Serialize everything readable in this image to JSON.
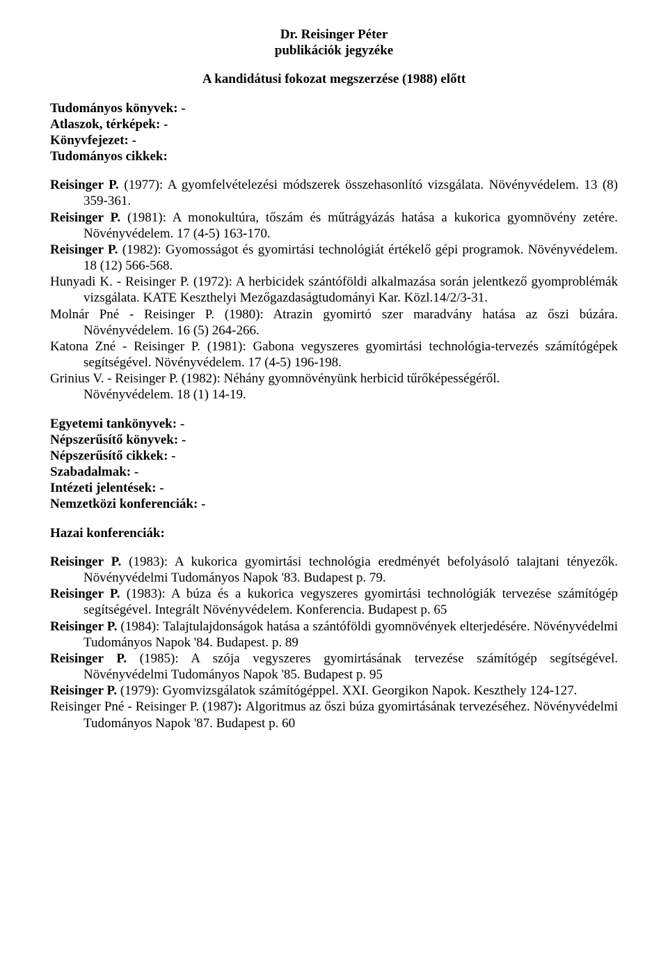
{
  "header": {
    "name": "Dr. Reisinger Péter",
    "subtitle": "publikációk jegyzéke",
    "section_label": "A kandidátusi fokozat megszerzése (1988) előtt"
  },
  "sections_top": [
    "Tudományos könyvek: -",
    "Atlaszok, térképek: -",
    "Könyvfejezet: -",
    "Tudományos cikkek:"
  ],
  "entries_main": [
    {
      "runs": [
        {
          "t": "Reisinger P.",
          "b": true
        },
        {
          "t": " (1977): A gyomfelvételezési módszerek összehasonlító vizsgálata. Növényvédelem. 13 (8) 359-361.",
          "b": false
        }
      ]
    },
    {
      "runs": [
        {
          "t": "Reisinger P.",
          "b": true
        },
        {
          "t": " (1981): A monokultúra, tőszám és műtrágyázás hatása a kukorica gyomnövény zetére. Növényvédelem. 17 (4-5) 163-170.",
          "b": false
        }
      ]
    },
    {
      "runs": [
        {
          "t": "Reisinger P.",
          "b": true
        },
        {
          "t": " (1982): Gyomosságot és gyomirtási technológiát értékelő gépi programok. Növényvédelem. 18 (12) 566-568.",
          "b": false
        }
      ]
    },
    {
      "runs": [
        {
          "t": "Hunyadi K. - Reisinger P.",
          "b": false
        },
        {
          "t": " (1972): A herbicidek szántóföldi alkalmazása során jelentkező gyomproblémák vizsgálata. KATE Keszthelyi Mezőgazdaságtudományi Kar. Közl.14/2/3-31.",
          "b": false
        }
      ]
    },
    {
      "runs": [
        {
          "t": "Molnár Pné - Reisinger  P.",
          "b": false
        },
        {
          "t": " (1980): Atrazin gyomirtó szer maradvány hatása az őszi búzára. Növényvédelem. 16 (5) 264-266.",
          "b": false
        }
      ]
    },
    {
      "runs": [
        {
          "t": "Katona Zné - Reisinger P.",
          "b": false
        },
        {
          "t": " (1981): Gabona vegyszeres gyomirtási technológia-tervezés számítógépek segítségével. Növényvédelem. 17 (4-5) 196-198.",
          "b": false
        }
      ]
    },
    {
      "runs": [
        {
          "t": "Grinius V.  - Reisinger P.",
          "b": false
        },
        {
          "t": " (1982):  Néhány gyomnövényünk herbicid tűrőképességéről.",
          "b": false
        }
      ]
    },
    {
      "runs": [
        {
          "t": "Növényvédelem. 18 (1) 14-19.",
          "b": false
        }
      ],
      "nohang": false,
      "indentOnly": true
    }
  ],
  "sections_mid": [
    "Egyetemi tankönyvek: -",
    "Népszerűsítő könyvek: -",
    "Népszerűsítő cikkek: -",
    "Szabadalmak: -",
    "Intézeti jelentések: -",
    "Nemzetközi konferenciák: -"
  ],
  "hazai_label": "Hazai konferenciák:",
  "entries_hazai": [
    {
      "runs": [
        {
          "t": "Reisinger  P.",
          "b": true
        },
        {
          "t": " (1983):  A kukorica gyomirtási technológia eredményét befolyásoló talajtani tényezők. Növényvédelmi Tudományos Napok '83. Budapest p. 79.",
          "b": false
        }
      ]
    },
    {
      "runs": [
        {
          "t": "Reisinger P.",
          "b": true
        },
        {
          "t": " (1983): A búza és a kukorica vegyszeres gyomirtási technológiák tervezése számítógép segítségével. Integrált Növényvédelem. Konferencia. Budapest p. 65",
          "b": false
        }
      ]
    },
    {
      "runs": [
        {
          "t": "Reisinger P.",
          "b": true
        },
        {
          "t": " (1984): Talajtulajdonságok hatása a szántóföldi gyomnövények elterjedésére. Növényvédelmi Tudományos Napok '84. Budapest. p. 89",
          "b": false
        }
      ]
    },
    {
      "runs": [
        {
          "t": "Reisinger P.",
          "b": true
        },
        {
          "t": " (1985): A szója vegyszeres gyomirtásának tervezése számítógép segítségével. Növényvédelmi Tudományos Napok '85.  Budapest p. 95",
          "b": false
        }
      ]
    },
    {
      "runs": [
        {
          "t": "Reisinger P.",
          "b": true
        },
        {
          "t": " (1979): Gyomvizsgálatok számítógéppel. XXI. Georgikon Napok. Keszthely 124-127.",
          "b": false
        }
      ]
    },
    {
      "runs": [
        {
          "t": "Reisinger Pné - Reisinger  P.",
          "b": false
        },
        {
          "t": " (1987)",
          "b": false
        },
        {
          "t": ": ",
          "b": true
        },
        {
          "t": "Algoritmus az őszi búza gyomirtásának tervezéséhez. Növényvédelmi Tudományos Napok '87. Budapest p. 60",
          "b": false
        }
      ]
    }
  ]
}
